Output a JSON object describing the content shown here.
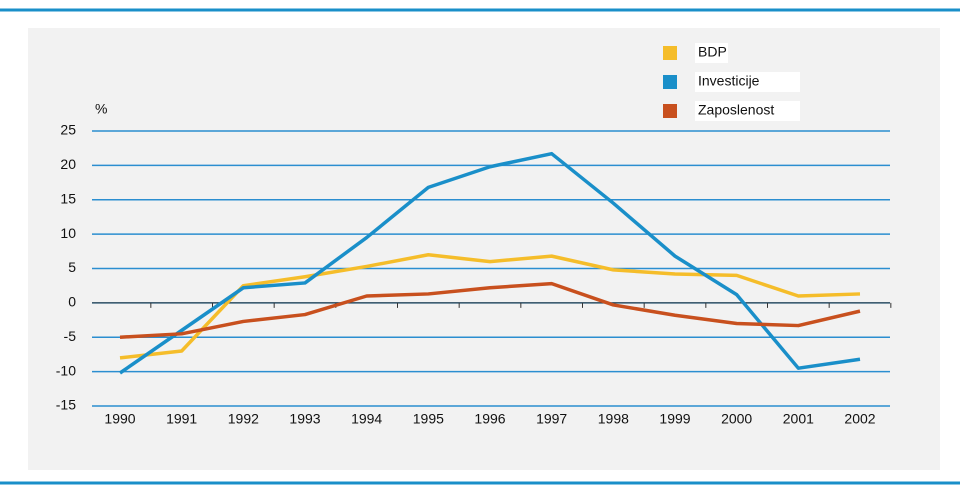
{
  "chart_data": {
    "type": "line",
    "y_label": "%",
    "categories": [
      "1990",
      "1991",
      "1992",
      "1993",
      "1994",
      "1995",
      "1996",
      "1997",
      "1998",
      "1999",
      "2000",
      "2001",
      "2002"
    ],
    "series": [
      {
        "name": "BDP",
        "color": "#f5bd2a",
        "values": [
          -8,
          -7,
          2.5,
          3.8,
          5.3,
          7,
          6,
          6.8,
          4.8,
          4.2,
          4,
          1,
          1.3
        ]
      },
      {
        "name": "Investicije",
        "color": "#1a8fc9",
        "values": [
          -10.2,
          -4,
          2.2,
          2.9,
          9.5,
          16.8,
          19.8,
          21.7,
          14.5,
          6.8,
          1.2,
          -9.5,
          -8.2
        ]
      },
      {
        "name": "Zaposlenost",
        "color": "#c8501e",
        "values": [
          -5,
          -4.5,
          -2.7,
          -1.7,
          1,
          1.3,
          2.2,
          2.8,
          -0.3,
          -1.8,
          -3,
          -3.3,
          -1.2
        ]
      }
    ],
    "ylim": [
      -15,
      25
    ],
    "yticks": [
      -15,
      -10,
      -5,
      0,
      5,
      10,
      15,
      20,
      25
    ],
    "grid": true
  }
}
